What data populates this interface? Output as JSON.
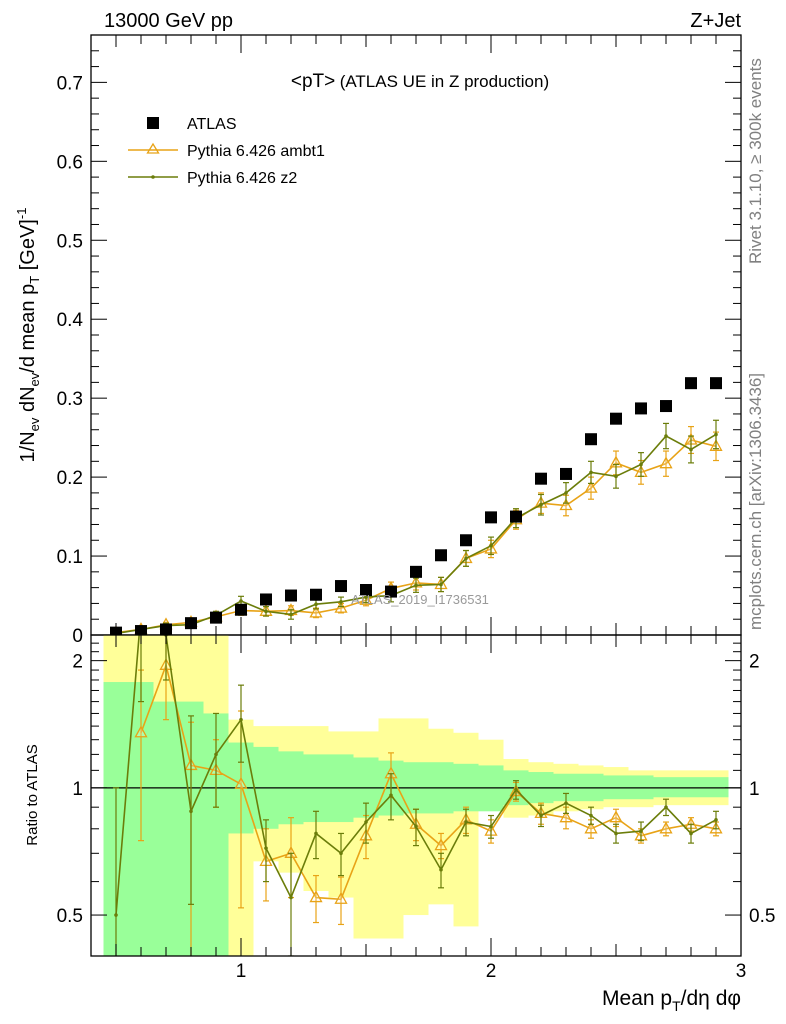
{
  "header": {
    "left": "13000 GeV pp",
    "right": "Z+Jet"
  },
  "side_text": {
    "rivet": "Rivet 3.1.10, ≥ 300k events",
    "mcplots": "mcplots.cern.ch [arXiv:1306.3436]"
  },
  "colors": {
    "ambt1": "#e8a317",
    "z2": "#6b7d0a",
    "band_inner": "#99ff99",
    "band_outer": "#ffff99",
    "data": "#000000"
  },
  "chart_data": [
    {
      "type": "scatter",
      "panel": "main",
      "title": "<pT> (ATLAS UE in Z production)",
      "title_parts": {
        "main": "<pT>",
        "sub": "(ATLAS UE in Z production)"
      },
      "ylabel": "1/N_ev dN_ev/d mean p_T [GeV]^-1",
      "xlabel": "Mean p_T/dη dφ",
      "xlim": [
        0.4,
        3.0
      ],
      "ylim": [
        0,
        0.76
      ],
      "yticks": [
        "0",
        "0.1",
        "0.2",
        "0.3",
        "0.4",
        "0.5",
        "0.6",
        "0.7"
      ],
      "yticks_values": [
        0,
        0.1,
        0.2,
        0.3,
        0.4,
        0.5,
        0.6,
        0.7
      ],
      "watermark": "ATLAS_2019_I1736531",
      "legend_position": "top-left",
      "x": [
        0.5,
        0.6,
        0.7,
        0.8,
        0.9,
        1.0,
        1.1,
        1.2,
        1.3,
        1.4,
        1.5,
        1.6,
        1.7,
        1.8,
        1.9,
        2.0,
        2.1,
        2.2,
        2.3,
        2.4,
        2.5,
        2.6,
        2.7,
        2.8,
        2.9
      ],
      "series": [
        {
          "name": "ATLAS",
          "style": "square",
          "values": [
            0.003,
            0.005,
            0.007,
            0.015,
            0.022,
            0.032,
            0.045,
            0.05,
            0.051,
            0.062,
            0.057,
            0.055,
            0.08,
            0.101,
            0.12,
            0.149,
            0.15,
            0.198,
            0.204,
            0.248,
            0.274,
            0.287,
            0.29,
            0.319,
            0.319
          ]
        },
        {
          "name": "Pythia 6.426 ambt1",
          "style": "triangle-line",
          "values": [
            0.003,
            0.007,
            0.013,
            0.016,
            0.023,
            0.031,
            0.03,
            0.031,
            0.028,
            0.034,
            0.044,
            0.059,
            0.066,
            0.064,
            0.097,
            0.109,
            0.146,
            0.167,
            0.164,
            0.186,
            0.218,
            0.206,
            0.217,
            0.247,
            0.239
          ],
          "errors": [
            0.002,
            0.003,
            0.003,
            0.004,
            0.005,
            0.006,
            0.006,
            0.006,
            0.006,
            0.006,
            0.007,
            0.008,
            0.009,
            0.009,
            0.01,
            0.011,
            0.012,
            0.013,
            0.013,
            0.014,
            0.015,
            0.015,
            0.016,
            0.017,
            0.018
          ]
        },
        {
          "name": "Pythia 6.426 z2",
          "style": "dot-line",
          "values": [
            0.002,
            0.007,
            0.012,
            0.013,
            0.025,
            0.043,
            0.03,
            0.026,
            0.039,
            0.042,
            0.048,
            0.05,
            0.063,
            0.064,
            0.097,
            0.113,
            0.148,
            0.165,
            0.18,
            0.206,
            0.201,
            0.216,
            0.252,
            0.235,
            0.254
          ],
          "errors": [
            0.002,
            0.003,
            0.003,
            0.004,
            0.005,
            0.006,
            0.006,
            0.006,
            0.006,
            0.006,
            0.007,
            0.008,
            0.009,
            0.009,
            0.01,
            0.011,
            0.012,
            0.013,
            0.013,
            0.014,
            0.015,
            0.015,
            0.016,
            0.017,
            0.018
          ]
        }
      ]
    },
    {
      "type": "line",
      "panel": "ratio",
      "ylabel": "Ratio to ATLAS",
      "xlabel": "Mean p_T/dη dφ",
      "xlim": [
        0.4,
        3.0
      ],
      "ylim": [
        0.4,
        2.3
      ],
      "ylog": true,
      "xticks": [
        "1",
        "2",
        "3"
      ],
      "xticks_values": [
        1,
        2,
        3
      ],
      "yticks": [
        "0.5",
        "1",
        "2"
      ],
      "yticks_values": [
        0.5,
        1,
        2
      ],
      "bin_edges": [
        0.45,
        0.55,
        0.65,
        0.75,
        0.85,
        0.95,
        1.05,
        1.15,
        1.25,
        1.35,
        1.45,
        1.55,
        1.65,
        1.75,
        1.85,
        1.95,
        2.05,
        2.15,
        2.25,
        2.35,
        2.45,
        2.55,
        2.65,
        2.75,
        2.85,
        2.95
      ],
      "band_inner": {
        "lo": [
          0.4,
          0.4,
          0.4,
          0.4,
          0.4,
          0.78,
          0.8,
          0.82,
          0.83,
          0.83,
          0.85,
          0.86,
          0.87,
          0.87,
          0.88,
          0.88,
          0.91,
          0.92,
          0.93,
          0.93,
          0.94,
          0.94,
          0.95,
          0.95,
          0.95
        ],
        "hi": [
          1.78,
          1.78,
          1.6,
          1.6,
          1.5,
          1.28,
          1.25,
          1.22,
          1.2,
          1.2,
          1.18,
          1.16,
          1.15,
          1.15,
          1.14,
          1.13,
          1.1,
          1.09,
          1.08,
          1.08,
          1.07,
          1.07,
          1.06,
          1.06,
          1.06
        ]
      },
      "band_outer": {
        "lo": [
          0.4,
          0.4,
          0.4,
          0.4,
          0.4,
          0.4,
          0.67,
          0.63,
          0.57,
          0.55,
          0.44,
          0.44,
          0.5,
          0.53,
          0.47,
          0.95,
          0.85,
          0.86,
          0.88,
          0.89,
          0.9,
          0.9,
          0.91,
          0.91,
          0.91
        ],
        "hi": [
          2.3,
          2.3,
          2.3,
          2.3,
          2.3,
          1.45,
          1.4,
          1.4,
          1.4,
          1.36,
          1.36,
          1.46,
          1.46,
          1.38,
          1.35,
          1.3,
          1.17,
          1.15,
          1.14,
          1.13,
          1.12,
          1.1,
          1.1,
          1.1,
          1.1
        ]
      },
      "x": [
        0.5,
        0.6,
        0.7,
        0.8,
        0.9,
        1.0,
        1.1,
        1.2,
        1.3,
        1.4,
        1.5,
        1.6,
        1.7,
        1.8,
        1.9,
        2.0,
        2.1,
        2.2,
        2.3,
        2.4,
        2.5,
        2.6,
        2.7,
        2.8,
        2.9
      ],
      "series": [
        {
          "name": "Pythia 6.426 ambt1",
          "values": [
            null,
            1.35,
            1.95,
            1.13,
            1.1,
            1.02,
            0.67,
            0.7,
            0.55,
            0.545,
            0.77,
            1.08,
            0.82,
            0.73,
            0.84,
            0.79,
            0.98,
            0.87,
            0.85,
            0.8,
            0.85,
            0.77,
            0.8,
            0.82,
            0.8
          ],
          "err_lo": [
            null,
            0.6,
            0.5,
            0.8,
            0.2,
            0.5,
            0.13,
            0.15,
            0.07,
            0.07,
            0.09,
            0.13,
            0.07,
            0.05,
            0.06,
            0.05,
            0.05,
            0.05,
            0.05,
            0.04,
            0.04,
            0.03,
            0.03,
            0.03,
            0.03
          ],
          "err_hi": [
            null,
            0.55,
            0.35,
            0.3,
            0.2,
            0.5,
            0.13,
            0.15,
            0.07,
            0.07,
            0.09,
            0.13,
            0.07,
            0.05,
            0.06,
            0.05,
            0.05,
            0.05,
            0.05,
            0.04,
            0.04,
            0.03,
            0.03,
            0.03,
            0.03
          ]
        },
        {
          "name": "Pythia 6.426 z2",
          "values": [
            0.5,
            2.6,
            2.3,
            0.88,
            1.2,
            1.45,
            0.72,
            0.55,
            0.78,
            0.7,
            0.83,
            0.96,
            0.81,
            0.64,
            0.83,
            0.81,
            0.99,
            0.86,
            0.92,
            0.86,
            0.78,
            0.79,
            0.9,
            0.78,
            0.84
          ],
          "err_lo": [
            0.25,
            1.0,
            0.5,
            0.35,
            0.3,
            0.3,
            0.12,
            0.15,
            0.1,
            0.08,
            0.09,
            0.12,
            0.08,
            0.06,
            0.06,
            0.05,
            0.05,
            0.05,
            0.05,
            0.04,
            0.04,
            0.04,
            0.04,
            0.04,
            0.04
          ],
          "err_hi": [
            0.5,
            1.0,
            0.5,
            0.6,
            0.3,
            0.3,
            0.12,
            0.15,
            0.1,
            0.08,
            0.09,
            0.12,
            0.08,
            0.06,
            0.06,
            0.05,
            0.05,
            0.05,
            0.05,
            0.04,
            0.04,
            0.04,
            0.04,
            0.04,
            0.04
          ]
        }
      ]
    }
  ]
}
